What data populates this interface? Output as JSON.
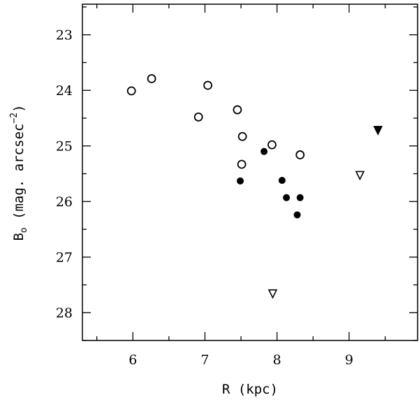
{
  "chart_data": {
    "type": "scatter",
    "title": "",
    "xlabel": "R (kpc)",
    "ylabel": {
      "base": "B",
      "subscript": "o",
      "text": " (mag. arcsec",
      "superscript": "−2",
      "close": ")"
    },
    "xlim": [
      5.3,
      9.95
    ],
    "ylim": [
      22.45,
      28.5
    ],
    "y_inverted": true,
    "xticks": [
      6,
      7,
      8,
      9
    ],
    "xtick_labels": [
      "6",
      "7",
      "8",
      "9"
    ],
    "yticks": [
      23,
      24,
      25,
      26,
      27,
      28
    ],
    "ytick_labels": [
      "23",
      "24",
      "25",
      "26",
      "27",
      "28"
    ],
    "x_minor_step": 0.5,
    "y_minor_step": 0.5,
    "grid": false,
    "legend": "none",
    "series": [
      {
        "marker": "open-circle",
        "points": [
          {
            "x": 5.98,
            "y": 24.01
          },
          {
            "x": 6.26,
            "y": 23.79
          },
          {
            "x": 6.91,
            "y": 24.48
          },
          {
            "x": 7.04,
            "y": 23.91
          },
          {
            "x": 7.45,
            "y": 24.35
          },
          {
            "x": 7.52,
            "y": 24.83
          },
          {
            "x": 7.51,
            "y": 25.33
          },
          {
            "x": 7.93,
            "y": 24.98
          },
          {
            "x": 8.32,
            "y": 25.16
          }
        ]
      },
      {
        "marker": "filled-circle",
        "points": [
          {
            "x": 7.49,
            "y": 25.63
          },
          {
            "x": 7.82,
            "y": 25.1
          },
          {
            "x": 8.07,
            "y": 25.62
          },
          {
            "x": 8.13,
            "y": 25.93
          },
          {
            "x": 8.32,
            "y": 25.93
          },
          {
            "x": 8.28,
            "y": 26.24
          }
        ]
      },
      {
        "marker": "open-triangle-down",
        "points": [
          {
            "x": 9.15,
            "y": 25.53
          },
          {
            "x": 7.94,
            "y": 27.66
          }
        ]
      },
      {
        "marker": "filled-triangle-down",
        "points": [
          {
            "x": 9.4,
            "y": 24.72
          }
        ]
      }
    ],
    "colors": {
      "frame": "#000000",
      "marker": "#000000",
      "background": "#ffffff"
    }
  }
}
